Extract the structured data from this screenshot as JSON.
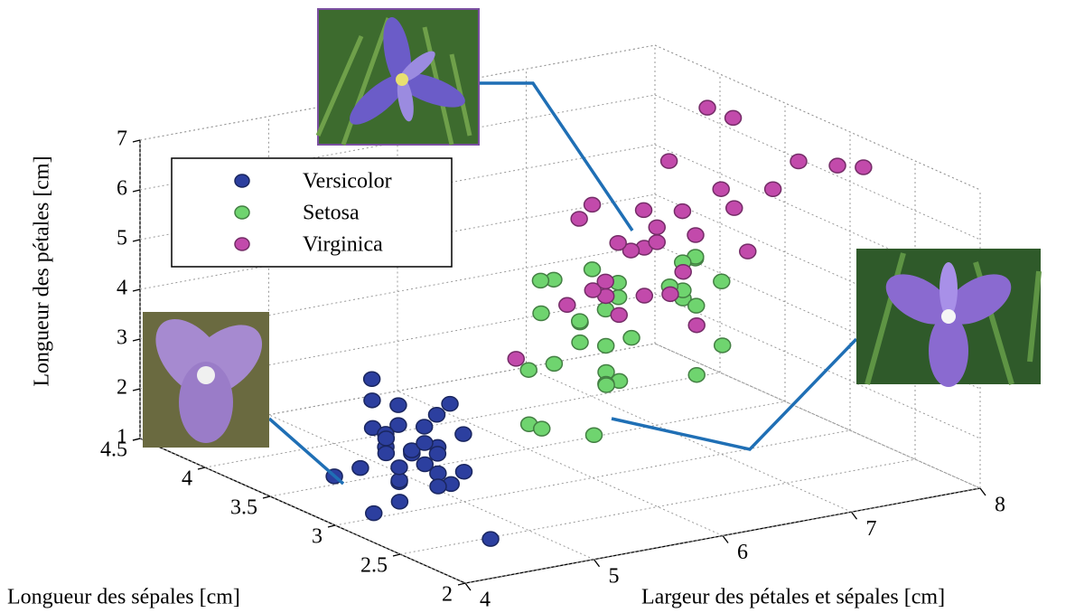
{
  "chart_data": {
    "type": "scatter3d",
    "xlabel": "Largeur des pétales et sépales [cm]",
    "ylabel": "Longueur des sépales [cm]",
    "zlabel": "Longueur des pétales [cm]",
    "xlim": [
      4,
      8
    ],
    "xticks": [
      4,
      5,
      6,
      7,
      8
    ],
    "ylim": [
      2,
      4.5
    ],
    "yticks": [
      2,
      2.5,
      3,
      3.5,
      4,
      4.5
    ],
    "zlim": [
      1,
      7
    ],
    "zticks": [
      1,
      2,
      3,
      4,
      5,
      6,
      7
    ],
    "grid": true,
    "legend": "upper-left",
    "series": [
      {
        "name": "Versicolor",
        "color": "#2c3f9f",
        "x": [
          5.1,
          4.9,
          4.7,
          4.6,
          5.0,
          5.4,
          4.6,
          5.0,
          4.4,
          4.9,
          5.4,
          4.8,
          4.8,
          4.3,
          5.8,
          5.7,
          5.4,
          5.1,
          5.7,
          5.1,
          5.4,
          5.1,
          4.6,
          5.1,
          4.8,
          5.0,
          5.2,
          5.2,
          4.7,
          5.5,
          4.5,
          5.0
        ],
        "y": [
          3.5,
          3.0,
          3.2,
          3.1,
          3.6,
          3.9,
          3.4,
          3.4,
          2.9,
          3.1,
          3.7,
          3.4,
          3.0,
          3.0,
          4.0,
          4.4,
          3.9,
          3.5,
          3.8,
          3.8,
          3.4,
          3.7,
          3.6,
          3.3,
          3.4,
          3.0,
          3.5,
          3.4,
          3.2,
          4.2,
          2.3,
          3.3
        ],
        "z": [
          1.4,
          1.4,
          1.3,
          1.5,
          1.4,
          1.7,
          1.4,
          1.5,
          1.4,
          1.5,
          1.5,
          1.6,
          1.4,
          1.1,
          1.2,
          1.5,
          1.3,
          1.4,
          1.7,
          1.5,
          1.7,
          1.5,
          1.0,
          1.7,
          1.9,
          1.6,
          1.5,
          1.4,
          1.6,
          1.4,
          1.3,
          1.4
        ]
      },
      {
        "name": "Setosa",
        "color": "#6fd46f",
        "x": [
          7.0,
          6.4,
          6.9,
          5.5,
          6.5,
          5.7,
          6.3,
          4.9,
          6.6,
          5.2,
          5.0,
          5.9,
          6.0,
          6.1,
          5.6,
          6.7,
          5.6,
          5.8,
          6.2,
          5.6,
          5.9,
          6.1,
          6.3,
          6.8,
          6.7,
          6.0,
          5.7,
          5.5,
          6.0,
          5.1,
          5.7
        ],
        "y": [
          3.2,
          3.2,
          3.1,
          2.3,
          2.8,
          2.8,
          3.3,
          2.4,
          2.9,
          2.7,
          2.0,
          3.0,
          2.2,
          2.9,
          2.9,
          3.1,
          3.0,
          2.7,
          2.2,
          2.5,
          3.2,
          2.8,
          2.5,
          2.8,
          3.0,
          2.9,
          2.6,
          2.4,
          3.4,
          2.5,
          2.8
        ],
        "z": [
          4.7,
          4.5,
          4.9,
          4.0,
          4.6,
          4.5,
          4.7,
          3.3,
          4.6,
          3.9,
          3.5,
          4.2,
          4.0,
          4.7,
          3.6,
          4.4,
          4.5,
          4.1,
          4.5,
          3.9,
          4.8,
          4.0,
          4.9,
          4.8,
          5.0,
          4.5,
          3.5,
          3.8,
          4.5,
          3.0,
          4.1
        ]
      },
      {
        "name": "Virginica",
        "color": "#c24aab",
        "x": [
          6.3,
          5.8,
          7.1,
          6.3,
          6.5,
          7.6,
          4.9,
          7.3,
          6.7,
          7.2,
          6.5,
          6.4,
          6.8,
          5.7,
          5.8,
          6.4,
          6.5,
          7.7,
          7.7,
          6.0,
          6.9,
          5.6,
          7.7,
          6.3,
          6.7,
          7.2,
          6.2,
          6.1,
          7.9,
          6.3
        ],
        "y": [
          3.3,
          2.7,
          3.0,
          2.9,
          3.0,
          3.0,
          2.5,
          2.9,
          2.5,
          3.6,
          3.2,
          2.7,
          3.0,
          2.5,
          2.8,
          3.2,
          3.0,
          3.8,
          2.6,
          2.2,
          3.2,
          2.8,
          2.8,
          2.7,
          3.3,
          3.2,
          2.8,
          3.0,
          3.8,
          3.4
        ],
        "z": [
          6.0,
          5.1,
          5.9,
          5.6,
          5.8,
          6.6,
          4.5,
          6.3,
          5.8,
          6.1,
          5.1,
          5.3,
          5.5,
          5.0,
          5.1,
          5.3,
          5.5,
          6.7,
          6.9,
          5.0,
          5.7,
          4.9,
          6.7,
          4.9,
          5.7,
          6.0,
          4.8,
          4.9,
          6.4,
          5.6
        ]
      }
    ]
  }
}
